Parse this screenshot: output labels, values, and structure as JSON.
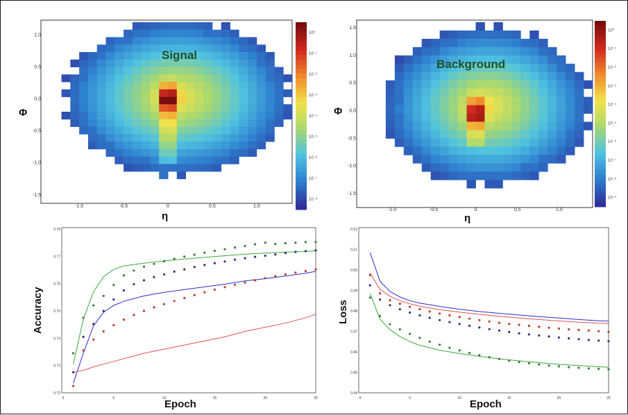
{
  "chart_data": [
    {
      "type": "heatmap",
      "title": "Signal",
      "xlabel": "η",
      "ylabel": "Φ",
      "x_ticks": [
        "-1.0",
        "-0.5",
        "0",
        "0.5",
        "1.0"
      ],
      "y_ticks": [
        "1.0",
        "0.5",
        "0.0",
        "-0.5",
        "-1.0",
        "-1.5"
      ],
      "colorbar_ticks": [
        "10⁰",
        "10⁻¹",
        "10⁻²",
        "10⁻³",
        "10⁻⁴",
        "10⁻⁵",
        "10⁻⁶",
        "10⁻⁷",
        "10⁻⁸"
      ],
      "xlim": [
        -1.4,
        1.4
      ],
      "ylim": [
        -1.6,
        1.2
      ],
      "colorscale": [
        "#2f2f9a",
        "#2e7fd0",
        "#4fc3e0",
        "#a8d870",
        "#f2e34a",
        "#f08a2c",
        "#d22a1e",
        "#7a0d0d"
      ],
      "core": {
        "eta": 0.0,
        "phi": 0.05,
        "tail_to_phi": -1.2
      }
    },
    {
      "type": "heatmap",
      "title": "Background",
      "xlabel": "η",
      "ylabel": "Φ",
      "x_ticks": [
        "-1.0",
        "-0.5",
        "0",
        "0.5",
        "1.0"
      ],
      "y_ticks": [
        "1.5",
        "1.0",
        "0.5",
        "0.0",
        "-0.5",
        "-1.0",
        "-1.5"
      ],
      "colorbar_ticks": [
        "10⁰",
        "10⁻¹",
        "10⁻²",
        "10⁻³",
        "10⁻⁴",
        "10⁻⁵",
        "10⁻⁶",
        "10⁻⁷",
        "10⁻⁸",
        "10⁻⁹"
      ],
      "xlim": [
        -1.4,
        1.4
      ],
      "ylim": [
        -1.7,
        1.6
      ],
      "colorscale": [
        "#2f2f9a",
        "#2e7fd0",
        "#4fc3e0",
        "#a8d870",
        "#f2e34a",
        "#f08a2c",
        "#d22a1e",
        "#7a0d0d"
      ],
      "core": {
        "eta": 0.0,
        "phi": 0.0,
        "tail_to_phi": -0.7
      }
    },
    {
      "type": "line",
      "xlabel": "Epoch",
      "ylabel": "Accuracy",
      "xlim": [
        0,
        25
      ],
      "ylim": [
        0.72,
        0.78
      ],
      "x_ticks": [
        "0",
        "5",
        "10",
        "15",
        "20",
        "25"
      ],
      "y_ticks": [
        "0.72",
        "0.73",
        "0.74",
        "0.75",
        "0.76",
        "0.77",
        "0.78"
      ],
      "series": [
        {
          "style": "line",
          "color": "#38a838",
          "x": [
            1,
            2,
            3,
            4,
            5,
            6,
            8,
            10,
            12,
            14,
            16,
            18,
            20,
            22,
            24,
            25
          ],
          "y": [
            0.7305,
            0.747,
            0.757,
            0.7625,
            0.7652,
            0.7665,
            0.7675,
            0.7683,
            0.769,
            0.7696,
            0.7702,
            0.7708,
            0.7712,
            0.7715,
            0.7718,
            0.772
          ]
        },
        {
          "style": "line",
          "color": "#2b2bd0",
          "x": [
            1,
            2,
            3,
            4,
            5,
            6,
            8,
            10,
            12,
            14,
            16,
            18,
            20,
            22,
            24,
            25
          ],
          "y": [
            0.7235,
            0.7345,
            0.7445,
            0.7495,
            0.752,
            0.7535,
            0.7555,
            0.7568,
            0.7578,
            0.7588,
            0.7598,
            0.761,
            0.7618,
            0.7628,
            0.7638,
            0.7645
          ]
        },
        {
          "style": "line",
          "color": "#e05050",
          "x": [
            1,
            2,
            3,
            4,
            5,
            6,
            8,
            10,
            12,
            14,
            16,
            18,
            20,
            22,
            24,
            25
          ],
          "y": [
            0.7275,
            0.7282,
            0.7295,
            0.7305,
            0.7315,
            0.7325,
            0.7345,
            0.736,
            0.7375,
            0.739,
            0.7405,
            0.7425,
            0.744,
            0.7455,
            0.7475,
            0.7488
          ]
        },
        {
          "style": "markers",
          "color": "#3a7a3a",
          "x": [
            1,
            2,
            3,
            4,
            5,
            6,
            7,
            8,
            9,
            10,
            11,
            12,
            13,
            14,
            15,
            16,
            17,
            18,
            19,
            20,
            21,
            22,
            23,
            24,
            25
          ],
          "y": [
            0.7345,
            0.7475,
            0.752,
            0.7555,
            0.7595,
            0.763,
            0.7648,
            0.7662,
            0.7672,
            0.7682,
            0.7691,
            0.7699,
            0.7706,
            0.7713,
            0.772,
            0.7726,
            0.7732,
            0.7738,
            0.7744,
            0.775,
            0.7745,
            0.7748,
            0.775,
            0.7752,
            0.7752
          ]
        },
        {
          "style": "markers",
          "color": "#303080",
          "x": [
            1,
            2,
            3,
            4,
            5,
            6,
            7,
            8,
            9,
            10,
            11,
            12,
            13,
            14,
            15,
            16,
            17,
            18,
            19,
            20,
            21,
            22,
            23,
            24,
            25
          ],
          "y": [
            0.7275,
            0.7405,
            0.7452,
            0.75,
            0.7542,
            0.7575,
            0.7598,
            0.7612,
            0.7624,
            0.7634,
            0.7644,
            0.7652,
            0.7661,
            0.7668,
            0.7675,
            0.7681,
            0.7688,
            0.7693,
            0.7698,
            0.7702,
            0.7707,
            0.7712,
            0.7716,
            0.7719,
            0.7722
          ]
        },
        {
          "style": "markers",
          "color": "#c03a30",
          "x": [
            1,
            2,
            3,
            4,
            5,
            6,
            7,
            8,
            9,
            10,
            11,
            12,
            13,
            14,
            15,
            16,
            17,
            18,
            19,
            20,
            21,
            22,
            23,
            24,
            25
          ],
          "y": [
            0.7225,
            0.7355,
            0.7395,
            0.7425,
            0.7448,
            0.7468,
            0.7485,
            0.75,
            0.7513,
            0.7525,
            0.7536,
            0.7547,
            0.7558,
            0.7568,
            0.7578,
            0.7587,
            0.7596,
            0.7604,
            0.7612,
            0.762,
            0.7627,
            0.7634,
            0.764,
            0.7646,
            0.7652
          ]
        }
      ]
    },
    {
      "type": "line",
      "xlabel": "Epoch",
      "ylabel": "Loss",
      "xlim": [
        0,
        25
      ],
      "ylim": [
        0.44,
        0.52
      ],
      "x_ticks": [
        "0",
        "5",
        "10",
        "15",
        "20",
        "25"
      ],
      "y_ticks": [
        "0.44",
        "0.45",
        "0.46",
        "0.47",
        "0.48",
        "0.49",
        "0.50",
        "0.51",
        "0.52"
      ],
      "series": [
        {
          "style": "line",
          "color": "#2b2bd0",
          "x": [
            1,
            2,
            3,
            4,
            5,
            6,
            8,
            10,
            12,
            14,
            16,
            18,
            20,
            22,
            24,
            25
          ],
          "y": [
            0.5085,
            0.4945,
            0.4895,
            0.4868,
            0.485,
            0.4838,
            0.4822,
            0.4808,
            0.4797,
            0.4788,
            0.478,
            0.4772,
            0.4765,
            0.4758,
            0.4752,
            0.475
          ]
        },
        {
          "style": "line",
          "color": "#e05050",
          "x": [
            1,
            2,
            3,
            4,
            5,
            6,
            8,
            10,
            12,
            14,
            16,
            18,
            20,
            22,
            24,
            25
          ],
          "y": [
            0.4985,
            0.4905,
            0.4872,
            0.485,
            0.4835,
            0.4823,
            0.4806,
            0.4794,
            0.4783,
            0.4774,
            0.4765,
            0.4758,
            0.4751,
            0.4745,
            0.474,
            0.4738
          ]
        },
        {
          "style": "line",
          "color": "#38a838",
          "x": [
            1,
            2,
            3,
            4,
            5,
            6,
            8,
            10,
            12,
            14,
            16,
            18,
            20,
            22,
            24,
            25
          ],
          "y": [
            0.4885,
            0.476,
            0.4708,
            0.4675,
            0.465,
            0.4632,
            0.4608,
            0.4592,
            0.4578,
            0.4566,
            0.4556,
            0.4547,
            0.4539,
            0.4533,
            0.4527,
            0.4525
          ]
        },
        {
          "style": "markers",
          "color": "#c03a30",
          "x": [
            1,
            2,
            3,
            4,
            5,
            6,
            7,
            8,
            9,
            10,
            11,
            12,
            13,
            14,
            15,
            16,
            17,
            18,
            19,
            20,
            21,
            22,
            23,
            24,
            25
          ],
          "y": [
            0.4975,
            0.4885,
            0.4852,
            0.4835,
            0.482,
            0.4808,
            0.4797,
            0.4787,
            0.4778,
            0.477,
            0.4762,
            0.4755,
            0.4748,
            0.4742,
            0.4737,
            0.4732,
            0.4727,
            0.4722,
            0.4718,
            0.4714,
            0.471,
            0.4707,
            0.4704,
            0.4701,
            0.4698
          ]
        },
        {
          "style": "markers",
          "color": "#303080",
          "x": [
            1,
            2,
            3,
            4,
            5,
            6,
            7,
            8,
            9,
            10,
            11,
            12,
            13,
            14,
            15,
            16,
            17,
            18,
            19,
            20,
            21,
            22,
            23,
            24,
            25
          ],
          "y": [
            0.4925,
            0.4855,
            0.4828,
            0.4808,
            0.4792,
            0.4778,
            0.4766,
            0.4755,
            0.4745,
            0.4736,
            0.4727,
            0.4719,
            0.4711,
            0.4704,
            0.4697,
            0.4691,
            0.4685,
            0.468,
            0.4675,
            0.467,
            0.4666,
            0.4662,
            0.4658,
            0.4655,
            0.4652
          ]
        },
        {
          "style": "markers",
          "color": "#3a7a3a",
          "x": [
            1,
            2,
            3,
            4,
            5,
            6,
            7,
            8,
            9,
            10,
            11,
            12,
            13,
            14,
            15,
            16,
            17,
            18,
            19,
            20,
            21,
            22,
            23,
            24,
            25
          ],
          "y": [
            0.4865,
            0.4775,
            0.4735,
            0.471,
            0.4688,
            0.4668,
            0.465,
            0.4635,
            0.462,
            0.4607,
            0.4595,
            0.4584,
            0.4574,
            0.4565,
            0.4557,
            0.455,
            0.4544,
            0.4538,
            0.4533,
            0.4529,
            0.4525,
            0.4522,
            0.4519,
            0.4517,
            0.4515
          ]
        }
      ]
    }
  ]
}
